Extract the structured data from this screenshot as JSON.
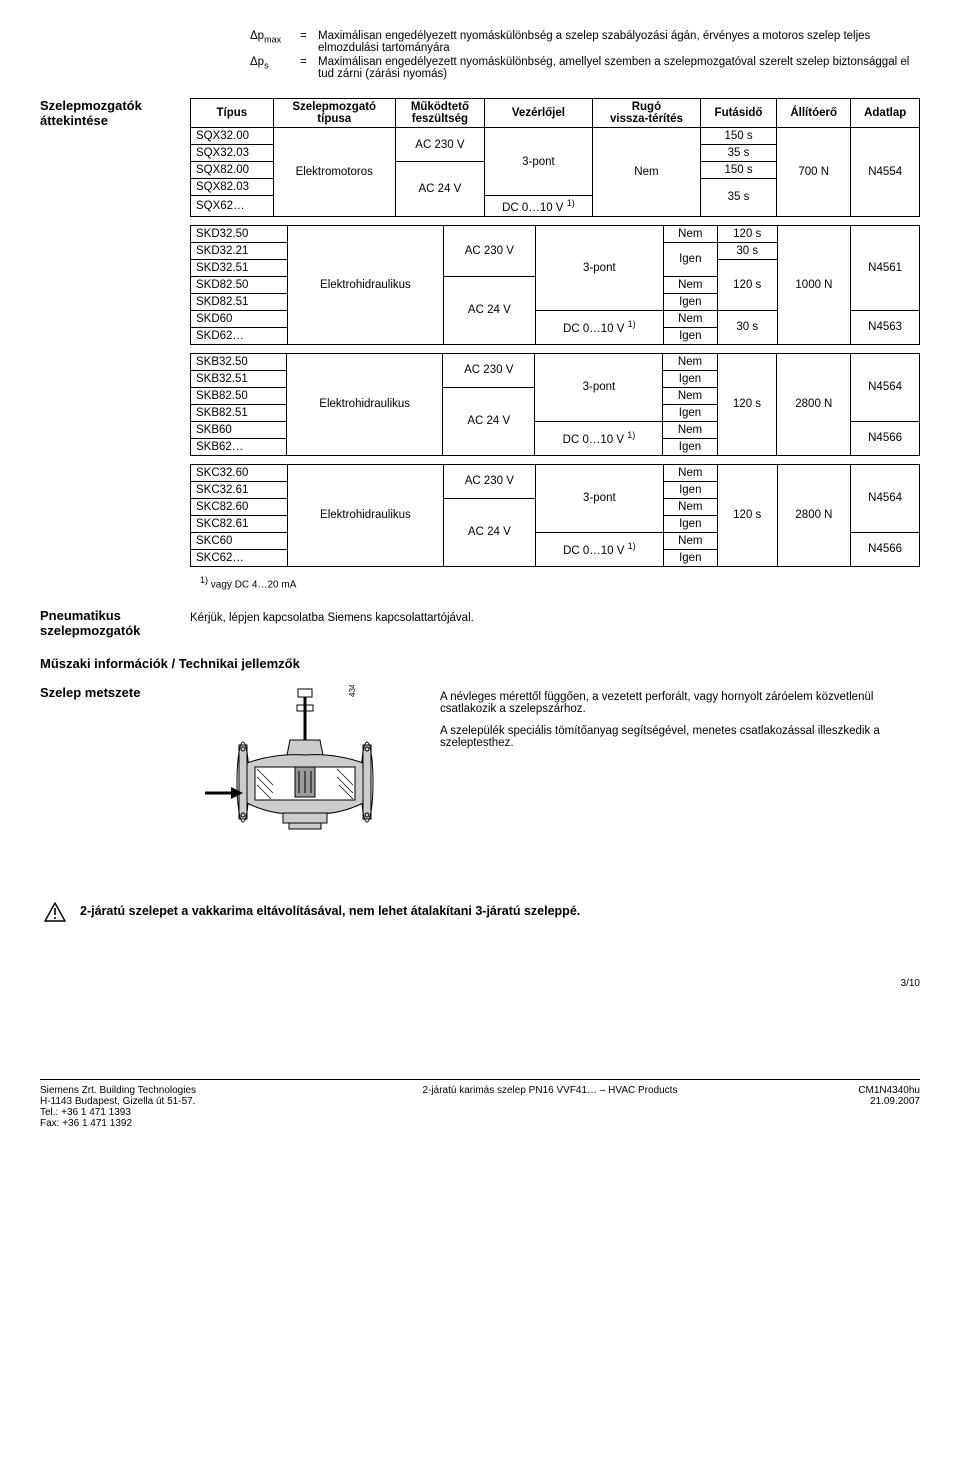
{
  "defs": [
    {
      "sym": "Δp<sub>max</sub>",
      "eq": "=",
      "text": "Maximálisan engedélyezett nyomáskülönbség a szelep szabályozási ágán, érvényes a motoros szelep teljes elmozdulási tartományára"
    },
    {
      "sym": "Δp<sub>s</sub>",
      "eq": "=",
      "text": "Maximálisan engedélyezett nyomáskülönbség, amellyel szemben a szelepmozgatóval szerelt szelep biztonsággal el tud zárni (zárási nyomás)"
    }
  ],
  "section_label": "Szelepmozgatók áttekintése",
  "headers": [
    "Típus",
    "Szelepmozgató típusa",
    "Működtető feszültség",
    "Vezérlőjel",
    "Rugó vissza-térítés",
    "Futásidő",
    "Állítóerő",
    "Adatlap"
  ],
  "table1": {
    "rows": [
      "SQX32.00",
      "SQX32.03",
      "SQX82.00",
      "SQX82.03",
      "SQX62…"
    ],
    "actuator": "Elektromotoros",
    "volt_a": "AC 230 V",
    "volt_b": "AC 24 V",
    "sig_a": "3-pont",
    "sig_b": "DC 0…10 V <sup>1)</sup>",
    "spring": "Nem",
    "run": [
      "150 s",
      "35 s",
      "150 s",
      "35 s"
    ],
    "force": "700 N",
    "sheet": "N4554"
  },
  "table2": {
    "rows": [
      "SKD32.50",
      "SKD32.21",
      "SKD32.51",
      "SKD82.50",
      "SKD82.51",
      "SKD60",
      "SKD62…"
    ],
    "actuator": "Elektrohidraulikus",
    "volt_a": "AC 230 V",
    "volt_b": "AC 24 V",
    "sig_a": "3-pont",
    "sig_b": "DC 0…10 V <sup>1)</sup>",
    "spring": [
      "Nem",
      "Igen",
      "Nem",
      "Igen",
      "Nem",
      "Igen"
    ],
    "run": [
      "120 s",
      "30 s",
      "120 s",
      "30 s"
    ],
    "force": "1000 N",
    "sheet_a": "N4561",
    "sheet_b": "N4563"
  },
  "table3": {
    "rows": [
      "SKB32.50",
      "SKB32.51",
      "SKB82.50",
      "SKB82.51",
      "SKB60",
      "SKB62…"
    ],
    "actuator": "Elektrohidraulikus",
    "volt_a": "AC 230 V",
    "volt_b": "AC 24 V",
    "sig_a": "3-pont",
    "sig_b": "DC 0…10 V <sup>1)</sup>",
    "spring": [
      "Nem",
      "Igen",
      "Nem",
      "Igen",
      "Nem",
      "Igen"
    ],
    "run": "120 s",
    "force": "2800 N",
    "sheet_a": "N4564",
    "sheet_b": "N4566"
  },
  "table4": {
    "rows": [
      "SKC32.60",
      "SKC32.61",
      "SKC82.60",
      "SKC82.61",
      "SKC60",
      "SKC62…"
    ],
    "actuator": "Elektrohidraulikus",
    "volt_a": "AC 230 V",
    "volt_b": "AC 24 V",
    "sig_a": "3-pont",
    "sig_b": "DC 0…10 V <sup>1)</sup>",
    "spring": [
      "Nem",
      "Igen",
      "Nem",
      "Igen",
      "Nem",
      "Igen"
    ],
    "run": "120 s",
    "force": "2800 N",
    "sheet_a": "N4564",
    "sheet_b": "N4566"
  },
  "footnote": "<sup>1)</sup> vagy DC 4…20 mA",
  "pneum_label": "Pneumatikus szelepmozgatók",
  "pneum_text": "Kérjük, lépjen kapcsolatba Siemens kapcsolattartójával.",
  "tech_heading": "Műszaki információk / Technikai jellemzők",
  "valve_label": "Szelep metszete",
  "valve_svg_id": "4340Z02",
  "valve_desc_a": "A névleges mérettől függően, a vezetett perforált, vagy hornyolt záróelem közvetlenül csatlakozik a szelepszárhoz.",
  "valve_desc_b": "A szelepülék speciális tömítőanyag segítségével, menetes csatlakozással illeszkedik a szeleptesthez.",
  "warn_text": "2-járatú szelepet a vakkarima eltávolításával, nem lehet átalakítani 3-járatú szeleppé.",
  "page_num": "3/10",
  "footer": {
    "company": "Siemens Zrt. Building Technologies",
    "addr": "H-1143 Budapest, Gizella út 51-57.",
    "tel": "Tel.: +36 1 471 1393",
    "fax": "Fax: +36 1 471 1392",
    "product": "2-járatú karimás szelep PN16 VVF41… – HVAC Products",
    "code": "CM1N4340hu",
    "date": "21.09.2007"
  }
}
